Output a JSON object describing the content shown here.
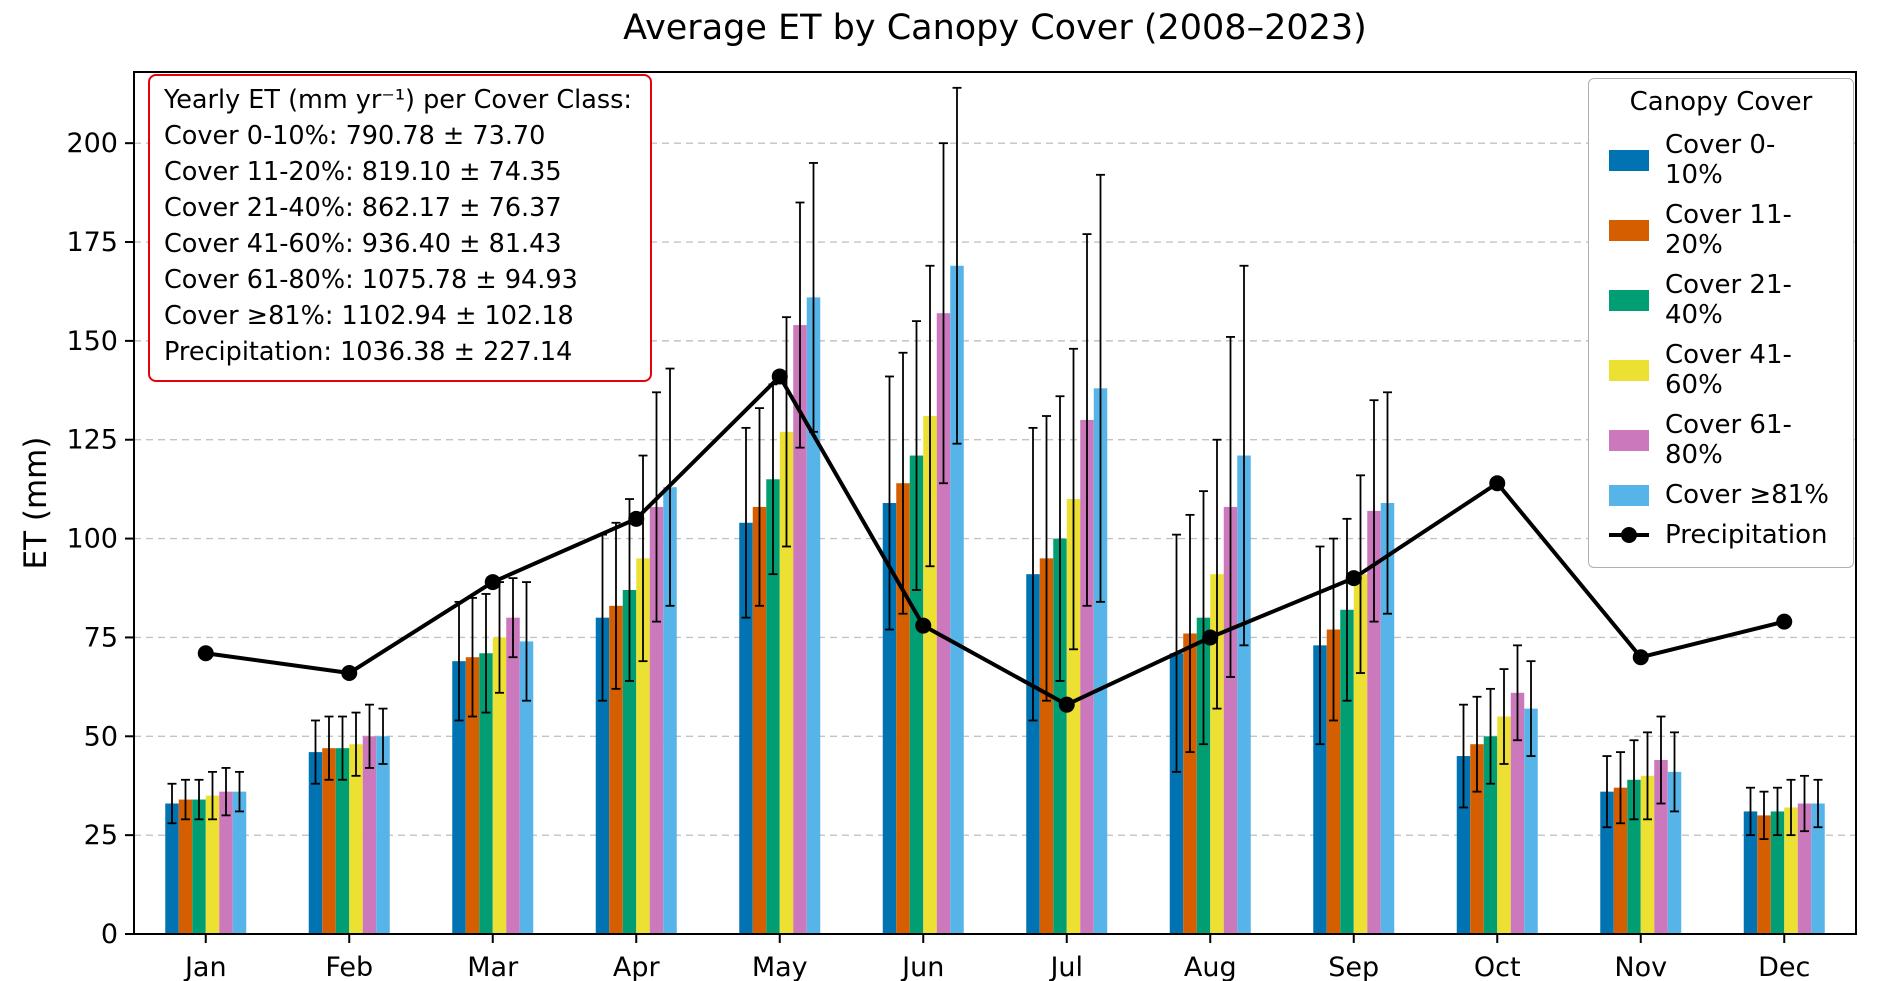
{
  "title": "Average ET by Canopy Cover (2008–2023)",
  "ylabel": "ET (mm)",
  "annotation": {
    "header": "Yearly ET (mm yr⁻¹) per Cover Class:",
    "lines": [
      "Cover 0-10%: 790.78 ± 73.70",
      "Cover 11-20%: 819.10 ± 74.35",
      "Cover 21-40%: 862.17 ± 76.37",
      "Cover 41-60%: 936.40 ± 81.43",
      "Cover 61-80%: 1075.78 ± 94.93",
      "Cover ≥81%: 1102.94 ± 102.18",
      "Precipitation: 1036.38 ± 227.14"
    ],
    "border_color": "#e8000b"
  },
  "legend": {
    "title": "Canopy Cover"
  },
  "chart_data": {
    "type": "bar",
    "title": "Average ET by Canopy Cover (2008–2023)",
    "xlabel": "",
    "ylabel": "ET (mm)",
    "categories": [
      "Jan",
      "Feb",
      "Mar",
      "Apr",
      "May",
      "Jun",
      "Jul",
      "Aug",
      "Sep",
      "Oct",
      "Nov",
      "Dec"
    ],
    "series": [
      {
        "name": "Cover 0-10%",
        "color": "#0173b2",
        "values": [
          33,
          46,
          69,
          80,
          104,
          109,
          91,
          71,
          73,
          45,
          36,
          31
        ],
        "errors": [
          5,
          8,
          15,
          21,
          24,
          32,
          37,
          30,
          25,
          13,
          9,
          6
        ]
      },
      {
        "name": "Cover 11-20%",
        "color": "#d55e00",
        "values": [
          34,
          47,
          70,
          83,
          108,
          114,
          95,
          76,
          77,
          48,
          37,
          30
        ],
        "errors": [
          5,
          8,
          15,
          21,
          25,
          33,
          36,
          30,
          23,
          12,
          9,
          6
        ]
      },
      {
        "name": "Cover 21-40%",
        "color": "#029e73",
        "values": [
          34,
          47,
          71,
          87,
          115,
          121,
          100,
          80,
          82,
          50,
          39,
          31
        ],
        "errors": [
          5,
          8,
          15,
          23,
          24,
          34,
          36,
          32,
          23,
          12,
          10,
          6
        ]
      },
      {
        "name": "Cover 41-60%",
        "color": "#ece133",
        "values": [
          35,
          48,
          75,
          95,
          127,
          131,
          110,
          91,
          91,
          55,
          40,
          32
        ],
        "errors": [
          6,
          8,
          14,
          26,
          29,
          38,
          38,
          34,
          25,
          12,
          11,
          7
        ]
      },
      {
        "name": "Cover 61-80%",
        "color": "#cc78bc",
        "values": [
          36,
          50,
          80,
          108,
          154,
          157,
          130,
          108,
          107,
          61,
          44,
          33
        ],
        "errors": [
          6,
          8,
          10,
          29,
          31,
          43,
          47,
          43,
          28,
          12,
          11,
          7
        ]
      },
      {
        "name": "Cover ≥81%",
        "color": "#56b4e9",
        "values": [
          36,
          50,
          74,
          113,
          161,
          169,
          138,
          121,
          109,
          57,
          41,
          33
        ],
        "errors": [
          5,
          7,
          15,
          30,
          34,
          45,
          54,
          48,
          28,
          12,
          10,
          6
        ]
      }
    ],
    "line_series": {
      "name": "Precipitation",
      "color": "#000000",
      "values": [
        71,
        66,
        89,
        105,
        141,
        78,
        58,
        75,
        90,
        114,
        70,
        79
      ]
    },
    "ylim": [
      0,
      218
    ],
    "yticks": [
      0,
      25,
      50,
      75,
      100,
      125,
      150,
      175,
      200
    ],
    "grid": "horizontal-dashed",
    "legend_position": "upper right"
  }
}
